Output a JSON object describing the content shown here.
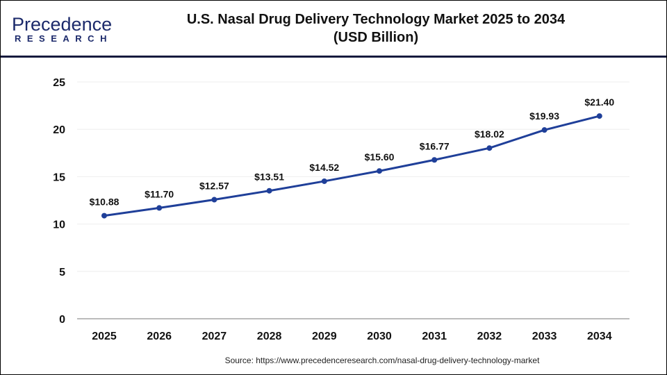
{
  "logo": {
    "line1": "Precedence",
    "line2": "RESEARCH"
  },
  "header": {
    "title_line1": "U.S. Nasal Drug Delivery Technology Market 2025 to 2034",
    "title_line2": "(USD Billion)"
  },
  "source": "Source: https://www.precedenceresearch.com/nasal-drug-delivery-technology-market",
  "chart_data": {
    "type": "line",
    "title": "U.S. Nasal Drug Delivery Technology Market 2025 to 2034 (USD Billion)",
    "categories": [
      "2025",
      "2026",
      "2027",
      "2028",
      "2029",
      "2030",
      "2031",
      "2032",
      "2033",
      "2034"
    ],
    "values": [
      10.88,
      11.7,
      12.57,
      13.51,
      14.52,
      15.6,
      16.77,
      18.02,
      19.93,
      21.4
    ],
    "data_labels": [
      "$10.88",
      "$11.70",
      "$12.57",
      "$13.51",
      "$14.52",
      "$15.60",
      "$16.77",
      "$18.02",
      "$19.93",
      "$21.40"
    ],
    "ylim": [
      0,
      25
    ],
    "yticks": [
      "0",
      "5",
      "10",
      "15",
      "20",
      "25"
    ],
    "grid": true,
    "legend": "none",
    "line_color": "#1f3f99"
  }
}
